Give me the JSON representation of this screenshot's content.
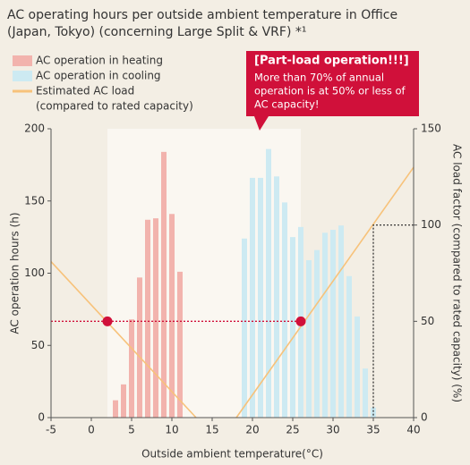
{
  "chart_data": {
    "type": "bar",
    "title_lines": [
      "AC operating hours per outside ambient temperature in Office",
      "(Japan, Tokyo) (concerning Large Split & VRF) *¹"
    ],
    "xlabel": "Outside ambient temperature(°C)",
    "ylabel": "AC operation hours (h)",
    "y2label": "AC load factor (compared to rated capacity) (%)",
    "xlim": [
      -5,
      40
    ],
    "xticks": [
      -5,
      0,
      5,
      10,
      15,
      20,
      25,
      30,
      35,
      40
    ],
    "ylim": [
      0,
      200
    ],
    "yticks": [
      0,
      50,
      100,
      150,
      200
    ],
    "y2lim": [
      0,
      150
    ],
    "y2ticks": [
      0,
      50,
      100,
      150
    ],
    "series": [
      {
        "name": "AC operation in heating",
        "color": "#f2b3ad",
        "x": [
          3,
          4,
          5,
          6,
          7,
          8,
          9,
          10,
          11
        ],
        "values": [
          12,
          23,
          68,
          97,
          137,
          138,
          184,
          141,
          101
        ]
      },
      {
        "name": "AC operation in cooling",
        "color": "#cdeaf2",
        "x": [
          19,
          20,
          21,
          22,
          23,
          24,
          25,
          26,
          27,
          28,
          29,
          30,
          31,
          32,
          33,
          34,
          35
        ],
        "values": [
          124,
          166,
          166,
          186,
          167,
          149,
          125,
          132,
          109,
          116,
          128,
          130,
          133,
          98,
          70,
          34,
          7
        ]
      },
      {
        "name": "Estimated AC load",
        "name_note": "(compared to rated capacity)",
        "type": "line",
        "axis": "y2",
        "color": "#f7c27a",
        "segments": [
          {
            "x": [
              -5,
              13
            ],
            "values": [
              81,
              0
            ]
          },
          {
            "x": [
              18,
              40
            ],
            "values": [
              0,
              130
            ]
          }
        ]
      }
    ],
    "shaded_span": [
      2,
      26
    ],
    "markers": [
      {
        "x": 2,
        "y2": 50
      },
      {
        "x": 26,
        "y2": 50
      }
    ],
    "guide_point": {
      "x": 35,
      "y2": 100
    },
    "annotation": {
      "title": "[Part-load operation!!!]",
      "lines": [
        "More than 70% of annual",
        "operation is at 50% or less of",
        "AC capacity!"
      ]
    }
  }
}
